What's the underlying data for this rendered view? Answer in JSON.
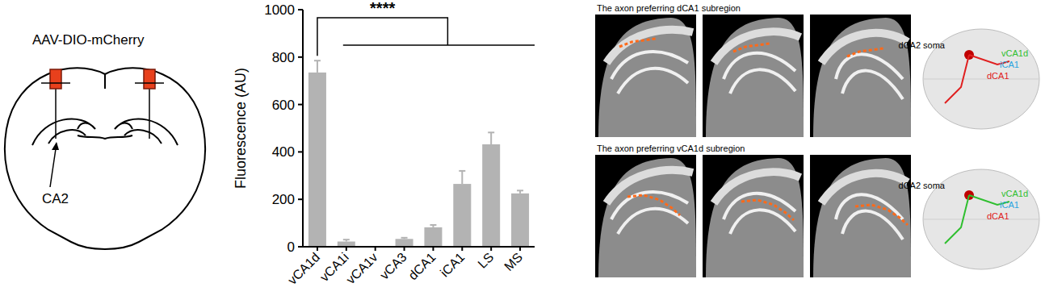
{
  "schematic": {
    "injection_label": "AAV-DIO-mCherry",
    "region_label": "CA2"
  },
  "chart_data": {
    "type": "bar",
    "y_label": "Fluorescence (AU)",
    "categories": [
      "vCA1d",
      "vCA1i",
      "vCA1v",
      "vCA3",
      "dCA1",
      "iCA1",
      "LS",
      "MS"
    ],
    "values": [
      735,
      22,
      0,
      33,
      82,
      265,
      432,
      225
    ],
    "errors": [
      50,
      8,
      0,
      5,
      10,
      55,
      50,
      12
    ],
    "color": "#b3b3b3",
    "ylim": [
      0,
      1000
    ],
    "yticks": [
      0,
      200,
      400,
      600,
      800,
      1000
    ],
    "annotations": [
      "****"
    ]
  },
  "projection_panels": [
    {
      "title": "The axon preferring dCA1 subregion",
      "labels": [
        "dCA2 soma",
        "vCA1d",
        "iCA1",
        "dCA1"
      ]
    },
    {
      "title": "The axon preferring vCA1d subregion",
      "labels": [
        "dCA2 soma",
        "vCA1d",
        "iCA1",
        "dCA1"
      ]
    }
  ]
}
